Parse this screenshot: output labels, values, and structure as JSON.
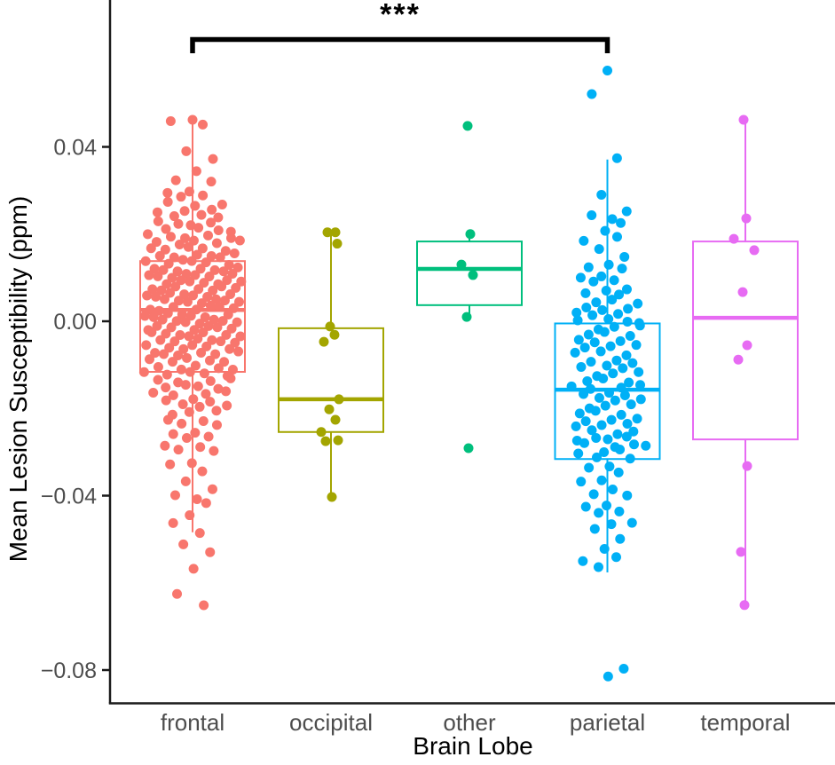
{
  "chart_data": {
    "type": "boxplot_jitter",
    "title": "",
    "xlabel": "Brain Lobe",
    "ylabel": "Mean Lesion Susceptibility (ppm)",
    "ylim": [
      -0.085,
      0.062
    ],
    "grid": false,
    "legend": "none",
    "yticks": [
      0.04,
      0.0,
      -0.04,
      -0.08
    ],
    "ytick_labels": [
      "0.04",
      "0.00",
      "−0.04",
      "−0.08"
    ],
    "categories": [
      "frontal",
      "occipital",
      "other",
      "parietal",
      "temporal"
    ],
    "significance": {
      "label": "***",
      "from": "frontal",
      "to": "parietal"
    },
    "style": {
      "axis_color": "#1a1a1a",
      "tick_label_color": "#4d4d4d",
      "title_color": "#000000",
      "background": "#ffffff",
      "bracket_color": "#000000"
    },
    "series": [
      {
        "name": "frontal",
        "color": "#F8766D",
        "jitter_width": 55,
        "box": {
          "q1": -0.0116,
          "median": 0.0026,
          "q3": 0.0138,
          "whisker_low": -0.0484,
          "whisker_high": 0.0466
        },
        "points_binned": [
          [
            0.0465,
            2
          ],
          [
            0.0448,
            1
          ],
          [
            0.039,
            1
          ],
          [
            0.0375,
            1
          ],
          [
            0.035,
            1
          ],
          [
            0.032,
            2
          ],
          [
            0.03,
            2
          ],
          [
            0.0285,
            2
          ],
          [
            0.027,
            3
          ],
          [
            0.0255,
            3
          ],
          [
            0.024,
            3
          ],
          [
            0.0225,
            4
          ],
          [
            0.021,
            4
          ],
          [
            0.0195,
            5
          ],
          [
            0.018,
            5
          ],
          [
            0.0165,
            5
          ],
          [
            0.015,
            6
          ],
          [
            0.0135,
            6
          ],
          [
            0.012,
            7
          ],
          [
            0.0105,
            7
          ],
          [
            0.009,
            7
          ],
          [
            0.0075,
            7
          ],
          [
            0.006,
            7
          ],
          [
            0.0045,
            7
          ],
          [
            0.003,
            7
          ],
          [
            0.0015,
            7
          ],
          [
            0.0,
            7
          ],
          [
            -0.0015,
            7
          ],
          [
            -0.003,
            7
          ],
          [
            -0.0045,
            6
          ],
          [
            -0.006,
            6
          ],
          [
            -0.0075,
            6
          ],
          [
            -0.009,
            5
          ],
          [
            -0.0105,
            5
          ],
          [
            -0.012,
            5
          ],
          [
            -0.0135,
            4
          ],
          [
            -0.015,
            4
          ],
          [
            -0.0165,
            4
          ],
          [
            -0.018,
            3
          ],
          [
            -0.0195,
            3
          ],
          [
            -0.021,
            3
          ],
          [
            -0.0225,
            2
          ],
          [
            -0.024,
            2
          ],
          [
            -0.0255,
            2
          ],
          [
            -0.027,
            2
          ],
          [
            -0.0285,
            2
          ],
          [
            -0.03,
            2
          ],
          [
            -0.0325,
            2
          ],
          [
            -0.035,
            1
          ],
          [
            -0.037,
            1
          ],
          [
            -0.0385,
            1
          ],
          [
            -0.0405,
            2
          ],
          [
            -0.042,
            1
          ],
          [
            -0.0445,
            1
          ],
          [
            -0.046,
            1
          ],
          [
            -0.048,
            1
          ],
          [
            -0.0515,
            1
          ],
          [
            -0.053,
            1
          ],
          [
            -0.0565,
            1
          ],
          [
            -0.062,
            1
          ],
          [
            -0.0655,
            1
          ]
        ]
      },
      {
        "name": "occipital",
        "color": "#A3A500",
        "jitter_width": 18,
        "box": {
          "q1": -0.0254,
          "median": -0.0179,
          "q3": -0.0016,
          "whisker_low": -0.0403,
          "whisker_high": 0.0204
        },
        "points": [
          [
            -4,
            0.0204
          ],
          [
            5,
            0.0204
          ],
          [
            7,
            0.0178
          ],
          [
            -1,
            -0.0012
          ],
          [
            4,
            -0.0031
          ],
          [
            -8,
            -0.0047
          ],
          [
            9,
            -0.0179
          ],
          [
            -2,
            -0.0202
          ],
          [
            5,
            -0.0226
          ],
          [
            -11,
            -0.0254
          ],
          [
            -6,
            -0.0275
          ],
          [
            8,
            -0.0273
          ],
          [
            1,
            -0.0403
          ]
        ]
      },
      {
        "name": "other",
        "color": "#00BF7D",
        "jitter_width": 10,
        "box": {
          "q1": 0.0037,
          "median": 0.012,
          "q3": 0.0183,
          "whisker_low": 0.001,
          "whisker_high": 0.02
        },
        "points": [
          [
            -2,
            0.0448
          ],
          [
            1,
            0.02
          ],
          [
            -9,
            0.013
          ],
          [
            4,
            0.0106
          ],
          [
            -3,
            0.001
          ],
          [
            -1,
            -0.0291
          ]
        ]
      },
      {
        "name": "parietal",
        "color": "#00B0F6",
        "jitter_width": 52,
        "box": {
          "q1": -0.0316,
          "median": -0.0157,
          "q3": -0.0005,
          "whisker_low": -0.0576,
          "whisker_high": 0.0371
        },
        "points_binned": [
          [
            0.0578,
            1
          ],
          [
            0.0527,
            1
          ],
          [
            0.0371,
            1
          ],
          [
            0.029,
            1
          ],
          [
            0.0255,
            1
          ],
          [
            0.024,
            2
          ],
          [
            0.0225,
            1
          ],
          [
            0.021,
            1
          ],
          [
            0.019,
            2
          ],
          [
            0.0165,
            1
          ],
          [
            0.015,
            1
          ],
          [
            0.0135,
            1
          ],
          [
            0.012,
            2
          ],
          [
            0.0105,
            2
          ],
          [
            0.009,
            2
          ],
          [
            0.0075,
            2
          ],
          [
            0.006,
            2
          ],
          [
            0.0045,
            3
          ],
          [
            0.003,
            3
          ],
          [
            0.0015,
            3
          ],
          [
            0.0,
            4
          ],
          [
            -0.0015,
            3
          ],
          [
            -0.003,
            3
          ],
          [
            -0.0045,
            3
          ],
          [
            -0.006,
            3
          ],
          [
            -0.0075,
            3
          ],
          [
            -0.009,
            3
          ],
          [
            -0.0105,
            3
          ],
          [
            -0.012,
            3
          ],
          [
            -0.0135,
            3
          ],
          [
            -0.015,
            4
          ],
          [
            -0.0165,
            3
          ],
          [
            -0.018,
            3
          ],
          [
            -0.0195,
            3
          ],
          [
            -0.021,
            3
          ],
          [
            -0.0225,
            3
          ],
          [
            -0.024,
            3
          ],
          [
            -0.0255,
            3
          ],
          [
            -0.027,
            4
          ],
          [
            -0.0285,
            4
          ],
          [
            -0.03,
            3
          ],
          [
            -0.0315,
            2
          ],
          [
            -0.033,
            2
          ],
          [
            -0.035,
            1
          ],
          [
            -0.0365,
            2
          ],
          [
            -0.038,
            1
          ],
          [
            -0.04,
            2
          ],
          [
            -0.042,
            2
          ],
          [
            -0.044,
            2
          ],
          [
            -0.046,
            2
          ],
          [
            -0.048,
            1
          ],
          [
            -0.05,
            1
          ],
          [
            -0.052,
            1
          ],
          [
            -0.0545,
            2
          ],
          [
            -0.0565,
            1
          ],
          [
            -0.0795,
            1
          ],
          [
            -0.081,
            1
          ]
        ]
      },
      {
        "name": "temporal",
        "color": "#E76BF3",
        "jitter_width": 15,
        "box": {
          "q1": -0.0271,
          "median": 0.0008,
          "q3": 0.0183,
          "whisker_low": -0.0651,
          "whisker_high": 0.0462
        },
        "points": [
          [
            -2,
            0.0462
          ],
          [
            1,
            0.0236
          ],
          [
            -13,
            0.0189
          ],
          [
            10,
            0.0163
          ],
          [
            -3,
            0.0067
          ],
          [
            2,
            -0.0055
          ],
          [
            -8,
            -0.0088
          ],
          [
            2,
            -0.0332
          ],
          [
            -5,
            -0.0529
          ],
          [
            -1,
            -0.0651
          ]
        ]
      }
    ]
  }
}
